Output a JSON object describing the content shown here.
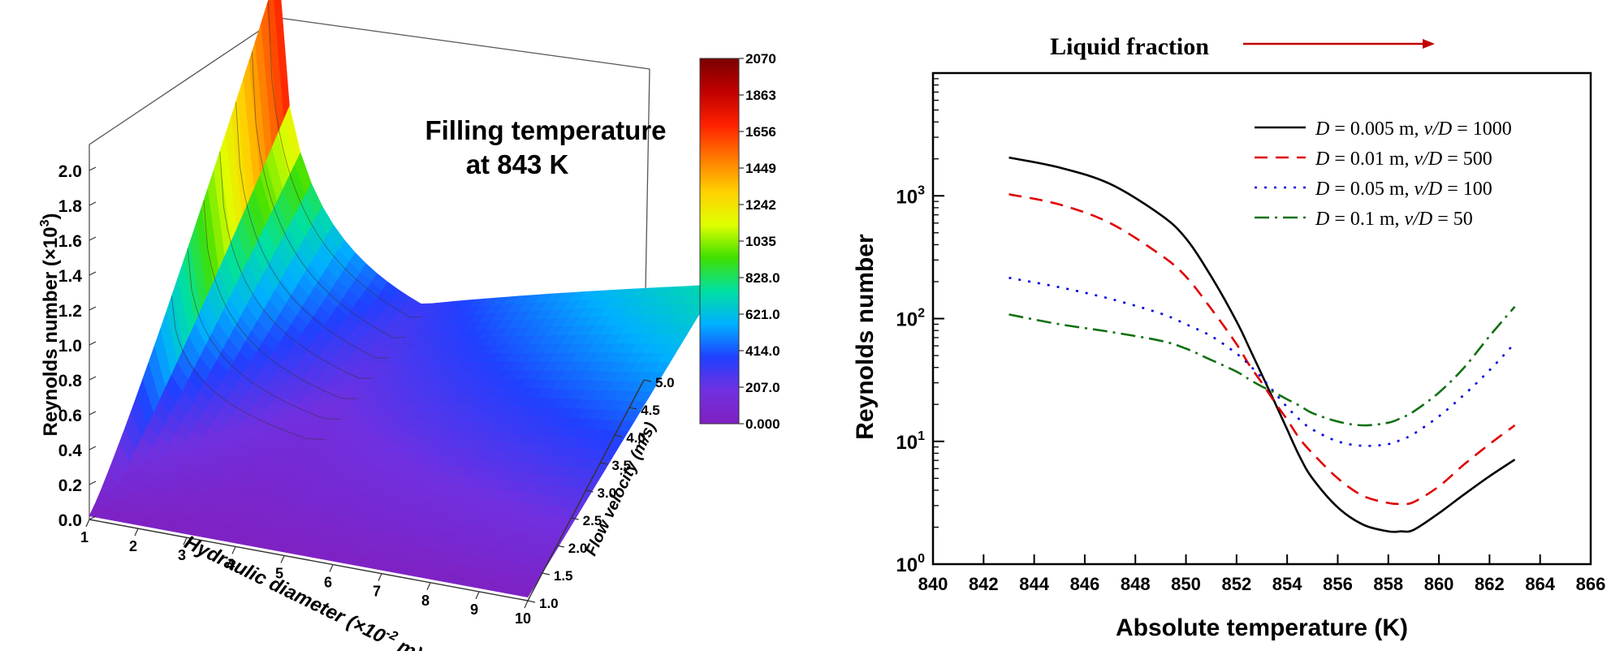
{
  "chart_data": [
    {
      "type": "surface3d",
      "annotation_line1": "Filling temperature",
      "annotation_line2": "at 843 K",
      "xlabel": "Hydraulic diameter (×10",
      "xlabel_exp": "-2",
      "xlabel_unit": " m)",
      "ylabel": "Flow velocity (m/s)",
      "zlabel": "Reynolds number (×10",
      "zlabel_exp": "3",
      "zlabel_close": ")",
      "x_ticks": [
        "1",
        "2",
        "3",
        "4",
        "5",
        "6",
        "7",
        "8",
        "9",
        "10"
      ],
      "y_ticks": [
        "1.0",
        "1.5",
        "2.0",
        "2.5",
        "3.0",
        "3.5",
        "4.0",
        "4.5",
        "5.0"
      ],
      "z_ticks": [
        "0.0",
        "0.2",
        "0.4",
        "0.6",
        "0.8",
        "1.0",
        "1.2",
        "1.4",
        "1.6",
        "1.8",
        "2.0"
      ],
      "x_range": [
        1,
        10
      ],
      "y_range": [
        1.0,
        5.0
      ],
      "z_range": [
        0,
        2.07
      ],
      "colorbar_ticks": [
        "2070",
        "1863",
        "1656",
        "1449",
        "1242",
        "1035",
        "828.0",
        "621.0",
        "414.0",
        "207.0",
        "0.000"
      ],
      "colorbar_range": [
        0,
        2070
      ],
      "colormap": [
        "#7a0000",
        "#c00000",
        "#ff2000",
        "#ff7a00",
        "#ffd000",
        "#e0ff00",
        "#40e000",
        "#00e0a0",
        "#00b0ff",
        "#2040ff",
        "#7030e0",
        "#8020c0"
      ]
    },
    {
      "type": "line",
      "title": "Liquid fraction",
      "xlabel": "Absolute temperature (K)",
      "ylabel": "Reynolds number",
      "x_ticks": [
        "840",
        "842",
        "844",
        "846",
        "848",
        "850",
        "852",
        "854",
        "856",
        "858",
        "860",
        "862",
        "864",
        "866"
      ],
      "xlim": [
        840,
        866
      ],
      "ylim": [
        1,
        10000
      ],
      "yscale": "log",
      "y_tick_base": "10",
      "y_tick_exps": [
        "0",
        "1",
        "2",
        "3"
      ],
      "legend_position": "top-right",
      "x": [
        843,
        845,
        847,
        849,
        850,
        851,
        852,
        852.5,
        853,
        853.5,
        854,
        854.5,
        855,
        856,
        857,
        858,
        858.5,
        859,
        860,
        861,
        862,
        863
      ],
      "series": [
        {
          "name_parts": [
            "D",
            " = 0.005 m, ",
            "v/D",
            " = 1000"
          ],
          "color": "#000000",
          "dash": "",
          "values": [
            2050,
            1700,
            1250,
            700,
            450,
            220,
            95,
            58,
            35,
            21,
            12.5,
            7.5,
            5,
            2.9,
            2.1,
            1.85,
            1.85,
            1.9,
            2.6,
            3.7,
            5.2,
            7.1
          ]
        },
        {
          "name_parts": [
            "D",
            " = 0.01 m, ",
            "v/D",
            " = 500"
          ],
          "color": "#e00000",
          "dash": "16,10",
          "values": [
            1030,
            850,
            600,
            330,
            220,
            120,
            62,
            42,
            30,
            21,
            15,
            10.5,
            8,
            5,
            3.6,
            3.15,
            3.1,
            3.2,
            4.3,
            6.5,
            9.5,
            13.5
          ]
        },
        {
          "name_parts": [
            "D",
            " = 0.05 m, ",
            "v/D",
            " = 100"
          ],
          "color": "#0000e0",
          "dash": "3,9",
          "values": [
            215,
            180,
            145,
            110,
            90,
            72,
            52,
            42,
            33,
            25,
            19,
            15,
            12.5,
            10,
            9.2,
            9.5,
            10.3,
            11.5,
            16,
            24,
            38,
            63
          ]
        },
        {
          "name_parts": [
            "D",
            " = 0.1 m, ",
            "v/D",
            " = 50"
          ],
          "color": "#107010",
          "dash": "18,7,3,7",
          "values": [
            108,
            90,
            78,
            66,
            57,
            46,
            37,
            32,
            28,
            25,
            22,
            19.5,
            17,
            14.5,
            13.5,
            14.2,
            15.5,
            17.5,
            25,
            40,
            72,
            125
          ]
        }
      ]
    }
  ]
}
